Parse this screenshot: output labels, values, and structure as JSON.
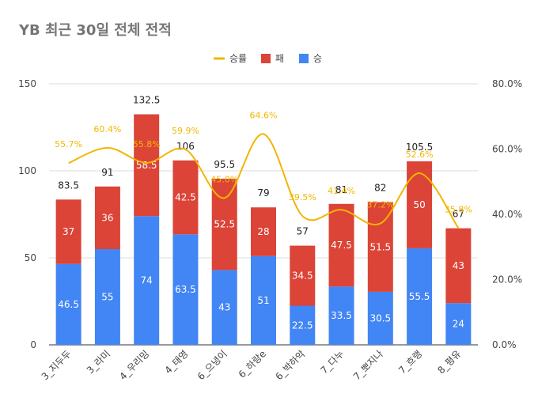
{
  "chart_data": {
    "type": "bar",
    "title": "YB 최근 30일 전체 전적",
    "categories": [
      "3_지두두",
      "3_라미",
      "4_우리밍",
      "4_태영",
      "6_으녕이",
      "6_하랑e",
      "6_박하악",
      "7_다누",
      "7_뽀지나",
      "7_흐랭",
      "8_평유"
    ],
    "series": [
      {
        "name": "승",
        "values": [
          46.5,
          55,
          74,
          63.5,
          43,
          51,
          22.5,
          33.5,
          30.5,
          55.5,
          24
        ],
        "color": "#4285f4"
      },
      {
        "name": "패",
        "values": [
          37,
          36,
          58.5,
          42.5,
          52.5,
          28,
          34.5,
          47.5,
          51.5,
          50,
          43
        ],
        "color": "#db4437"
      }
    ],
    "totals": [
      83.5,
      91,
      132.5,
      106,
      95.5,
      79,
      57,
      81,
      82,
      105.5,
      67
    ],
    "line": {
      "name": "승률",
      "values": [
        55.7,
        60.4,
        55.8,
        59.9,
        45.0,
        64.6,
        39.5,
        41.4,
        37.2,
        52.6,
        35.8
      ],
      "labels": [
        "55.7%",
        "60.4%",
        "55.8%",
        "59.9%",
        "45.0%",
        "64.6%",
        "39.5%",
        "41.4%",
        "37.2%",
        "52.6%",
        "35.8%"
      ],
      "color": "#f4b400"
    },
    "ylim": [
      0,
      150
    ],
    "yticks": [
      0,
      50,
      100,
      150
    ],
    "y2lim": [
      0,
      80
    ],
    "y2ticks": [
      "0.0%",
      "20.0%",
      "40.0%",
      "60.0%",
      "80.0%"
    ],
    "legend": {
      "position": "top",
      "items": [
        "승률",
        "패",
        "승"
      ]
    },
    "grid": true
  }
}
